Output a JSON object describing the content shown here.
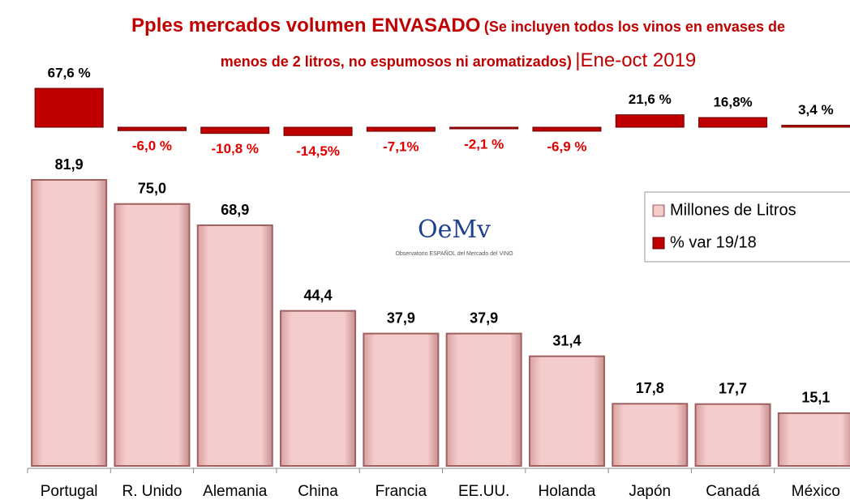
{
  "chart_data": {
    "type": "bar",
    "title": "Pples mercados volumen ENVASADO",
    "subtitle": "(Se incluyen todos los vinos en envases de menos de 2 litros, no espumosos ni aromatizados)",
    "period": "Ene-oct 2019",
    "logo": {
      "mark": "OeMv",
      "text": "Observatorio ESPAÑOL del Mercado del VINO"
    },
    "categories": [
      "Portugal",
      "R. Unido",
      "Alemania",
      "China",
      "Francia",
      "EE.UU.",
      "Holanda",
      "Japón",
      "Canadá",
      "México"
    ],
    "series": [
      {
        "name": "Millones de Litros",
        "color": "#f0c0c0",
        "values": [
          81.9,
          75.0,
          68.9,
          44.4,
          37.9,
          37.9,
          31.4,
          17.8,
          17.7,
          15.1
        ],
        "value_labels": [
          "81,9",
          "75,0",
          "68,9",
          "44,4",
          "37,9",
          "37,9",
          "31,4",
          "17,8",
          "17,7",
          "15,1"
        ]
      },
      {
        "name": "% var 19/18",
        "color": "#c00000",
        "values": [
          67.6,
          -6.0,
          -10.8,
          -14.5,
          -7.1,
          -2.1,
          -6.9,
          21.6,
          16.8,
          3.4
        ],
        "value_labels": [
          "67,6 %",
          "-6,0 %",
          "-10,8 %",
          "-14,5%",
          "-7,1%",
          "-2,1 %",
          "-6,9 %",
          "21,6 %",
          "16,8%",
          "3,4 %"
        ]
      }
    ],
    "legend": "right"
  }
}
